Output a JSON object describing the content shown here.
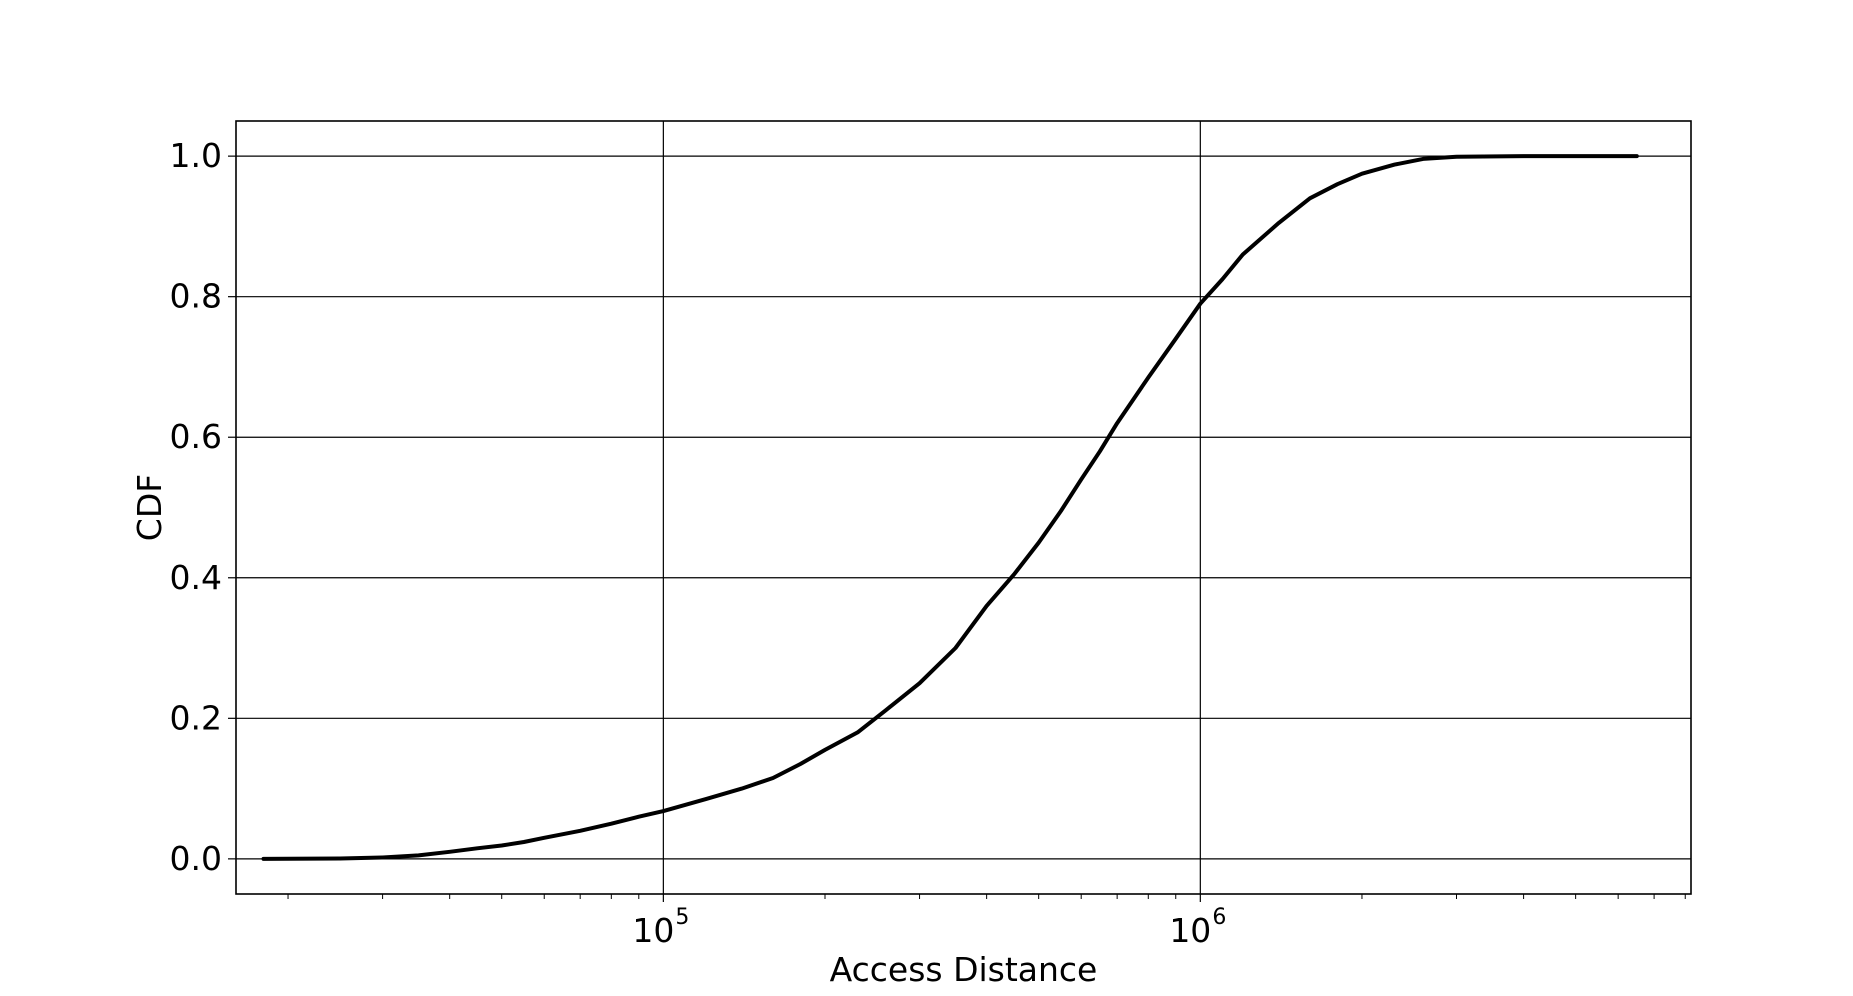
{
  "chart_data": {
    "type": "line",
    "title": "",
    "xlabel": "Access Distance",
    "ylabel": "CDF",
    "xscale": "log",
    "xlim": [
      16000,
      8200000
    ],
    "ylim": [
      -0.05,
      1.05
    ],
    "grid": true,
    "legend": "none",
    "x_ticks": [
      {
        "value": 100000,
        "base": "10",
        "exp": "5"
      },
      {
        "value": 1000000,
        "base": "10",
        "exp": "6"
      }
    ],
    "y_ticks": [
      {
        "value": 0.0,
        "label": "0.0"
      },
      {
        "value": 0.2,
        "label": "0.2"
      },
      {
        "value": 0.4,
        "label": "0.4"
      },
      {
        "value": 0.6,
        "label": "0.6"
      },
      {
        "value": 0.8,
        "label": "0.8"
      },
      {
        "value": 1.0,
        "label": "1.0"
      }
    ],
    "series": [
      {
        "color": "#000000",
        "x": [
          18000,
          25000,
          30000,
          35000,
          40000,
          45000,
          50000,
          55000,
          60000,
          70000,
          80000,
          90000,
          100000,
          120000,
          140000,
          160000,
          180000,
          200000,
          230000,
          260000,
          300000,
          350000,
          400000,
          450000,
          500000,
          550000,
          600000,
          650000,
          700000,
          800000,
          900000,
          1000000,
          1100000,
          1200000,
          1400000,
          1600000,
          1800000,
          2000000,
          2300000,
          2600000,
          3000000,
          4000000,
          5000000,
          6500000
        ],
        "y": [
          0.0,
          0.0005,
          0.002,
          0.005,
          0.01,
          0.015,
          0.019,
          0.024,
          0.03,
          0.04,
          0.05,
          0.06,
          0.068,
          0.085,
          0.1,
          0.115,
          0.135,
          0.155,
          0.18,
          0.212,
          0.25,
          0.3,
          0.36,
          0.405,
          0.45,
          0.495,
          0.54,
          0.58,
          0.62,
          0.685,
          0.74,
          0.79,
          0.825,
          0.86,
          0.905,
          0.94,
          0.96,
          0.975,
          0.988,
          0.996,
          0.999,
          1.0,
          1.0,
          1.0
        ]
      }
    ]
  }
}
